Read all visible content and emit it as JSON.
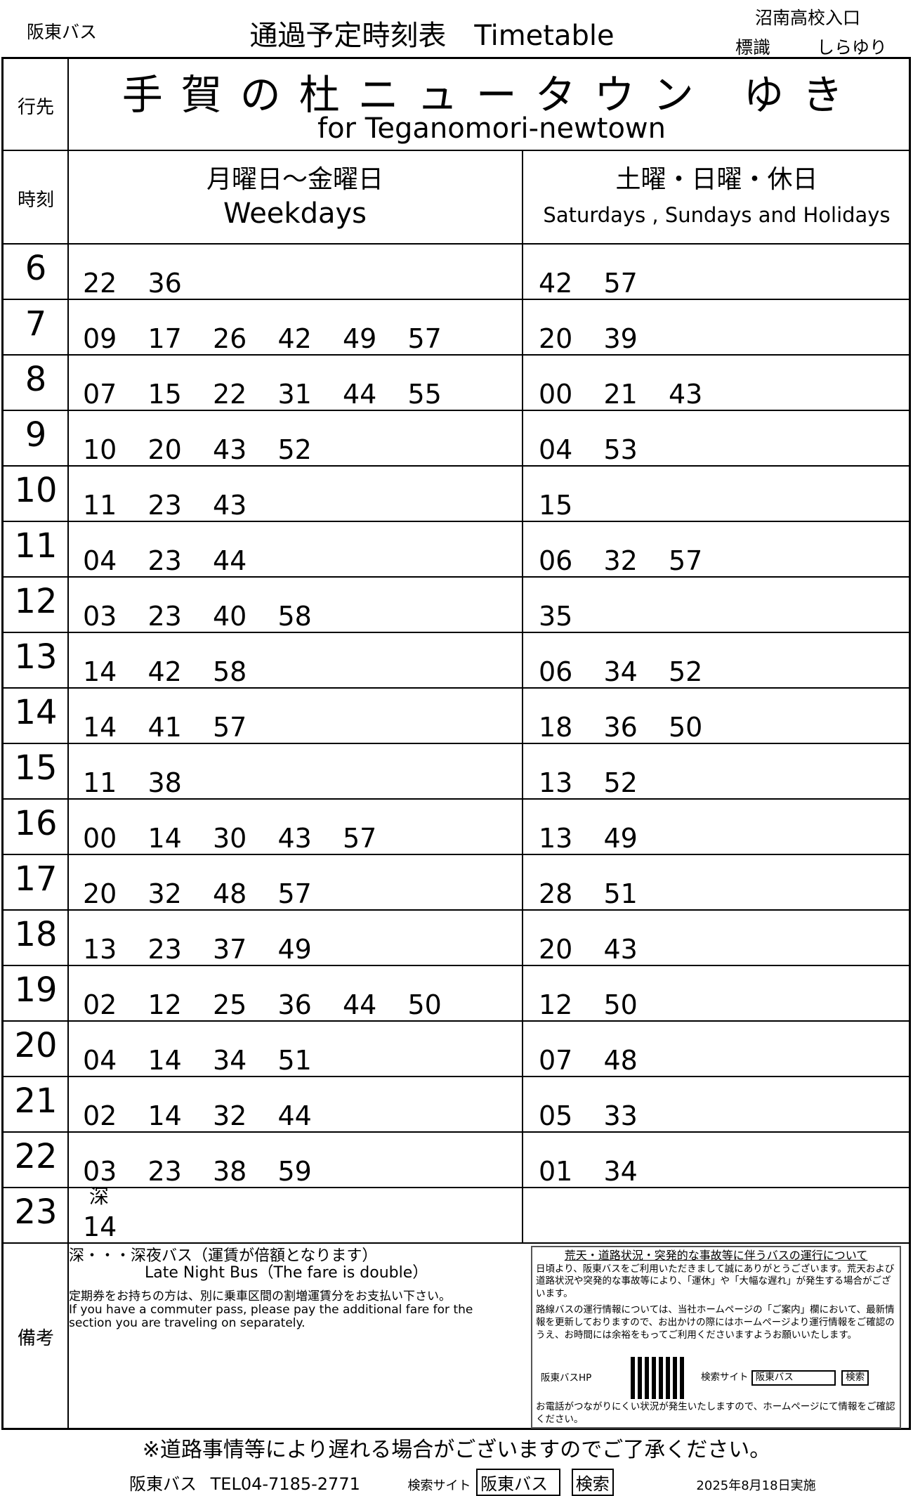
{
  "header": {
    "company": "阪東バス",
    "title": "通過予定時刻表　Timetable",
    "stop": "沼南高校入口",
    "pole_label": "標識",
    "pole": "しらゆり"
  },
  "labels": {
    "destination": "行先",
    "time": "時刻",
    "remarks": "備考"
  },
  "destination": {
    "jp": "手賀の杜ニュータウン ゆき",
    "en": "for Teganomori-newtown"
  },
  "days": {
    "weekday_jp": "月曜日～金曜日",
    "weekday_en": "Weekdays",
    "holiday_jp": "土曜・日曜・休日",
    "holiday_en": "Saturdays , Sundays and Holidays"
  },
  "rows": [
    {
      "hour": "6",
      "weekday": [
        "22",
        "36"
      ],
      "holiday": [
        "42",
        "57"
      ]
    },
    {
      "hour": "7",
      "weekday": [
        "09",
        "17",
        "26",
        "42",
        "49",
        "57"
      ],
      "holiday": [
        "20",
        "39"
      ]
    },
    {
      "hour": "8",
      "weekday": [
        "07",
        "15",
        "22",
        "31",
        "44",
        "55"
      ],
      "holiday": [
        "00",
        "21",
        "43"
      ]
    },
    {
      "hour": "9",
      "weekday": [
        "10",
        "20",
        "43",
        "52"
      ],
      "holiday": [
        "04",
        "53"
      ]
    },
    {
      "hour": "10",
      "weekday": [
        "11",
        "23",
        "43"
      ],
      "holiday": [
        "15"
      ]
    },
    {
      "hour": "11",
      "weekday": [
        "04",
        "23",
        "44"
      ],
      "holiday": [
        "06",
        "32",
        "57"
      ]
    },
    {
      "hour": "12",
      "weekday": [
        "03",
        "23",
        "40",
        "58"
      ],
      "holiday": [
        "35"
      ]
    },
    {
      "hour": "13",
      "weekday": [
        "14",
        "42",
        "58"
      ],
      "holiday": [
        "06",
        "34",
        "52"
      ]
    },
    {
      "hour": "14",
      "weekday": [
        "14",
        "41",
        "57"
      ],
      "holiday": [
        "18",
        "36",
        "50"
      ]
    },
    {
      "hour": "15",
      "weekday": [
        "11",
        "38"
      ],
      "holiday": [
        "13",
        "52"
      ]
    },
    {
      "hour": "16",
      "weekday": [
        "00",
        "14",
        "30",
        "43",
        "57"
      ],
      "holiday": [
        "13",
        "49"
      ]
    },
    {
      "hour": "17",
      "weekday": [
        "20",
        "32",
        "48",
        "57"
      ],
      "holiday": [
        "28",
        "51"
      ]
    },
    {
      "hour": "18",
      "weekday": [
        "13",
        "23",
        "37",
        "49"
      ],
      "holiday": [
        "20",
        "43"
      ]
    },
    {
      "hour": "19",
      "weekday": [
        "02",
        "12",
        "25",
        "36",
        "44",
        "50"
      ],
      "holiday": [
        "12",
        "50"
      ]
    },
    {
      "hour": "20",
      "weekday": [
        "04",
        "14",
        "34",
        "51"
      ],
      "holiday": [
        "07",
        "48"
      ]
    },
    {
      "hour": "21",
      "weekday": [
        "02",
        "14",
        "32",
        "44"
      ],
      "holiday": [
        "05",
        "33"
      ]
    },
    {
      "hour": "22",
      "weekday": [
        "03",
        "23",
        "38",
        "59"
      ],
      "holiday": [
        "01",
        "34"
      ]
    },
    {
      "hour": "23",
      "weekday": [
        "14"
      ],
      "holiday": [],
      "weekday_mark": "深"
    }
  ],
  "notes": {
    "late_jp": "深・・・深夜バス（運賃が倍額となります）",
    "late_en": "Late Night Bus（The fare is double）",
    "pass_jp": "定期券をお持ちの方は、別に乗車区間の割増運賃分をお支払い下さい。",
    "pass_en": "If you have a commuter pass, please pay the additional fare for the section you are traveling on separately."
  },
  "info_box": {
    "title": "荒天・道路状況・突発的な事故等に伴うバスの運行について",
    "p1": "日頃より、阪東バスをご利用いただきまして誠にありがとうございます。荒天および道路状況や突発的な事故等により、「運休」や「大幅な遅れ」が発生する場合がございます。",
    "p2": "路線バスの運行情報については、当社ホームページの「ご案内」欄において、最新情報を更新しておりますので、お出かけの際にはホームページより運行情報をご確認のうえ、お時間には余裕をもってご利用くださいますようお願いいたします。",
    "hp_label": "阪東バスHP",
    "search_label": "検索サイト",
    "search_value": "阪東バス",
    "search_button": "検索",
    "p3": "お電話がつながりにくい状況が発生いたしますので、ホームページにて情報をご確認ください。"
  },
  "footer": {
    "note": "※道路事情等により遅れる場合がございますのでご了承ください。",
    "company": "阪東バス",
    "tel": "TEL04-7185-2771",
    "search_label": "検索サイト",
    "search_value": "阪東バス",
    "search_button": "検索",
    "effective": "2025年8月18日実施"
  }
}
